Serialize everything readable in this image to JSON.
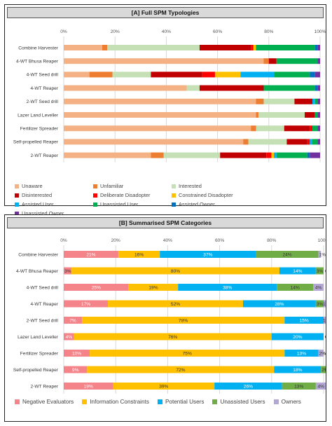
{
  "chart_data": [
    {
      "type": "bar",
      "orientation": "horizontal",
      "stacked": true,
      "normalized": true,
      "title": "[A] Full SPM Typologies",
      "categories": [
        "Combine Harvester",
        "4-WT Bhusa Reaper",
        "4-WT Seed drill",
        "4-WT Reaper",
        "2-WT Seed drill",
        "Lazer Land Leveller",
        "Fertilizer Spreader",
        "Self-propelled Reaper",
        "2-WT Reaper"
      ],
      "x_ticks": [
        "0%",
        "20%",
        "40%",
        "60%",
        "80%",
        "100%"
      ],
      "xlim": [
        0,
        100
      ],
      "grid": true,
      "legend_position": "bottom",
      "series": [
        {
          "name": "Unaware",
          "color": "#f4b183",
          "values": [
            15,
            78,
            10,
            48,
            75,
            75,
            73,
            70,
            34
          ]
        },
        {
          "name": "Unfamiliar",
          "color": "#ed7d31",
          "values": [
            2,
            2,
            9,
            0,
            3,
            1,
            2,
            2,
            5
          ]
        },
        {
          "name": "Interested",
          "color": "#c5e0b4",
          "values": [
            36,
            0,
            15,
            5,
            12,
            18,
            11,
            15,
            22
          ]
        },
        {
          "name": "Disinterested",
          "color": "#c00000",
          "values": [
            20,
            3,
            20,
            25,
            7,
            4,
            10,
            8,
            18
          ]
        },
        {
          "name": "Deliberate Disadopter",
          "color": "#ff0000",
          "values": [
            1,
            0,
            5,
            0,
            0,
            0,
            1,
            1,
            2
          ]
        },
        {
          "name": "Constrained Disadopter",
          "color": "#ffc000",
          "values": [
            1,
            0,
            10,
            0,
            0,
            0,
            0,
            0,
            1
          ]
        },
        {
          "name": "Assisted User",
          "color": "#00b0f0",
          "values": [
            0,
            0,
            13,
            0,
            1,
            0,
            0,
            1,
            1
          ]
        },
        {
          "name": "Unassisted User",
          "color": "#00b050",
          "values": [
            23,
            16,
            14,
            20,
            1,
            1,
            2,
            2,
            12
          ]
        },
        {
          "name": "Assisted Owner",
          "color": "#0070c0",
          "values": [
            1,
            0,
            2,
            1,
            0,
            0,
            0,
            0,
            1
          ]
        },
        {
          "name": "Unassisted Owner",
          "color": "#7030a0",
          "values": [
            1,
            1,
            2,
            1,
            1,
            1,
            1,
            1,
            4
          ]
        }
      ]
    },
    {
      "type": "bar",
      "orientation": "horizontal",
      "stacked": true,
      "normalized": true,
      "title": "[B] Summarised SPM Categories",
      "categories": [
        "Combine Harvester",
        "4-WT Bhusa Reaper",
        "4-WT Seed drill",
        "4-WT Reaper",
        "2-WT Seed drill",
        "Lazer Land Leveller",
        "Fertilizer Spreader",
        "Self-propelled Reaper",
        "2-WT Reaper"
      ],
      "x_ticks": [
        "0%",
        "20%",
        "40%",
        "60%",
        "80%",
        "100%"
      ],
      "xlim": [
        0,
        100
      ],
      "grid": true,
      "legend_position": "bottom",
      "series": [
        {
          "name": "Negative Evaluators",
          "color": "#f4838a",
          "values": [
            21,
            3,
            25,
            17,
            7,
            4,
            10,
            9,
            19
          ],
          "labels": [
            "21%",
            "3%",
            "25%",
            "17%",
            "7%",
            "4%",
            "10%",
            "9%",
            "19%"
          ]
        },
        {
          "name": "Information Constraints",
          "color": "#ffc000",
          "values": [
            16,
            80,
            19,
            52,
            78,
            76,
            75,
            72,
            39
          ],
          "labels": [
            "16%",
            "80%",
            "19%",
            "52%",
            "78%",
            "76%",
            "75%",
            "72%",
            "39%"
          ]
        },
        {
          "name": "Potential Users",
          "color": "#00b0f0",
          "values": [
            37,
            14,
            38,
            28,
            15,
            20,
            13,
            18,
            26
          ],
          "labels": [
            "37%",
            "14%",
            "38%",
            "28%",
            "15%",
            "20%",
            "13%",
            "18%",
            "26%"
          ]
        },
        {
          "name": "Unassisted Users",
          "color": "#70ad47",
          "values": [
            24,
            3,
            14,
            3,
            0,
            0,
            0,
            2,
            13
          ],
          "labels": [
            "24%",
            "3%",
            "14%",
            "3%",
            "0%",
            "0%",
            "0%",
            "2%",
            "13%"
          ]
        },
        {
          "name": "Owners",
          "color": "#b4a7d6",
          "values": [
            1,
            0,
            4,
            1,
            1,
            0,
            2,
            0,
            4
          ],
          "labels": [
            "1%",
            "0%",
            "4%",
            "1%",
            "1%",
            "0%",
            "2%",
            "0%",
            "4%"
          ]
        }
      ]
    }
  ]
}
